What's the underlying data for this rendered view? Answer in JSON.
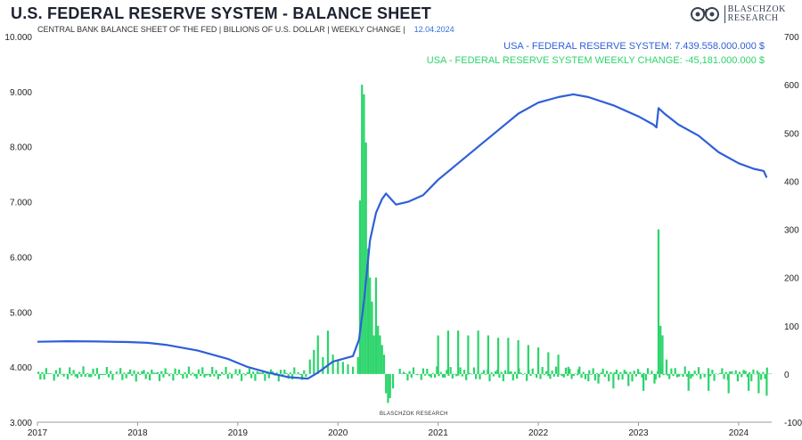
{
  "header": {
    "title": "U.S. FEDERAL RESERVE SYSTEM - BALANCE SHEET",
    "subtitle": "CENTRAL BANK BALANCE SHEET OF THE FED | BILLIONS OF U.S. DOLLAR | WEEKLY CHANGE |",
    "date": "12.04.2024"
  },
  "brand": {
    "line1": "BLASCHZOK",
    "line2": "RESEARCH",
    "watermark": "BLASCHZOK RESEARCH"
  },
  "colors": {
    "balance_line": "#2f5fd8",
    "weekly_bars": "#2bd46a"
  },
  "chart_data": {
    "type": "line",
    "legend": [
      "USA - FEDERAL RESERVE SYSTEM: 7.439.558.000.000 $",
      "USA - FEDERAL RESERVE SYSTEM WEEKLY CHANGE: -45,181.000.000 $"
    ],
    "legend_position": "top-right",
    "x_range": [
      2017.0,
      2024.33
    ],
    "x_ticks": [
      "2017",
      "2018",
      "2019",
      "2020",
      "2021",
      "2022",
      "2023",
      "2024"
    ],
    "y_left_range": [
      3000,
      10000
    ],
    "y_left_ticks": [
      "3.000",
      "4.000",
      "5.000",
      "6.000",
      "7.000",
      "8.000",
      "9.000",
      "10.000"
    ],
    "y_right_range": [
      -100,
      700
    ],
    "y_right_ticks": [
      "-100",
      "0",
      "100",
      "200",
      "300",
      "400",
      "500",
      "600",
      "700"
    ],
    "grid": false,
    "series": [
      {
        "axis": "left",
        "style": "line",
        "points": [
          [
            2017.0,
            4460
          ],
          [
            2017.3,
            4470
          ],
          [
            2017.6,
            4465
          ],
          [
            2017.9,
            4455
          ],
          [
            2018.1,
            4440
          ],
          [
            2018.3,
            4400
          ],
          [
            2018.6,
            4300
          ],
          [
            2018.9,
            4150
          ],
          [
            2019.1,
            4000
          ],
          [
            2019.3,
            3900
          ],
          [
            2019.5,
            3820
          ],
          [
            2019.7,
            3790
          ],
          [
            2019.8,
            3900
          ],
          [
            2019.95,
            4100
          ],
          [
            2020.15,
            4200
          ],
          [
            2020.21,
            4500
          ],
          [
            2020.26,
            5200
          ],
          [
            2020.32,
            6300
          ],
          [
            2020.38,
            6800
          ],
          [
            2020.44,
            7050
          ],
          [
            2020.48,
            7150
          ],
          [
            2020.53,
            7050
          ],
          [
            2020.58,
            6950
          ],
          [
            2020.7,
            7000
          ],
          [
            2020.85,
            7120
          ],
          [
            2021.0,
            7400
          ],
          [
            2021.2,
            7700
          ],
          [
            2021.4,
            8000
          ],
          [
            2021.6,
            8300
          ],
          [
            2021.8,
            8600
          ],
          [
            2022.0,
            8800
          ],
          [
            2022.2,
            8900
          ],
          [
            2022.35,
            8950
          ],
          [
            2022.5,
            8900
          ],
          [
            2022.75,
            8750
          ],
          [
            2023.0,
            8550
          ],
          [
            2023.15,
            8400
          ],
          [
            2023.18,
            8350
          ],
          [
            2023.2,
            8700
          ],
          [
            2023.26,
            8600
          ],
          [
            2023.4,
            8400
          ],
          [
            2023.6,
            8200
          ],
          [
            2023.8,
            7900
          ],
          [
            2024.0,
            7700
          ],
          [
            2024.15,
            7600
          ],
          [
            2024.25,
            7560
          ],
          [
            2024.28,
            7440
          ]
        ]
      },
      {
        "axis": "right",
        "style": "bars",
        "points": [
          [
            2019.72,
            30
          ],
          [
            2019.76,
            50
          ],
          [
            2019.8,
            80
          ],
          [
            2019.85,
            35
          ],
          [
            2019.9,
            90
          ],
          [
            2019.95,
            40
          ],
          [
            2020.0,
            30
          ],
          [
            2020.05,
            25
          ],
          [
            2020.1,
            20
          ],
          [
            2020.15,
            15
          ],
          [
            2020.2,
            35
          ],
          [
            2020.22,
            360
          ],
          [
            2020.24,
            600
          ],
          [
            2020.26,
            580
          ],
          [
            2020.28,
            480
          ],
          [
            2020.3,
            260
          ],
          [
            2020.32,
            200
          ],
          [
            2020.34,
            150
          ],
          [
            2020.36,
            80
          ],
          [
            2020.38,
            200
          ],
          [
            2020.4,
            100
          ],
          [
            2020.42,
            80
          ],
          [
            2020.44,
            60
          ],
          [
            2020.46,
            40
          ],
          [
            2020.48,
            -40
          ],
          [
            2020.5,
            -60
          ],
          [
            2020.52,
            -50
          ],
          [
            2020.55,
            -30
          ],
          [
            2021.0,
            80
          ],
          [
            2021.1,
            90
          ],
          [
            2021.2,
            90
          ],
          [
            2021.3,
            80
          ],
          [
            2021.4,
            90
          ],
          [
            2021.5,
            80
          ],
          [
            2021.6,
            75
          ],
          [
            2021.7,
            75
          ],
          [
            2021.8,
            70
          ],
          [
            2021.9,
            60
          ],
          [
            2022.0,
            55
          ],
          [
            2022.1,
            45
          ],
          [
            2022.2,
            40
          ],
          [
            2022.3,
            15
          ],
          [
            2022.4,
            10
          ],
          [
            2022.5,
            -15
          ],
          [
            2022.6,
            -20
          ],
          [
            2022.75,
            -30
          ],
          [
            2022.9,
            -25
          ],
          [
            2023.05,
            -35
          ],
          [
            2023.16,
            -20
          ],
          [
            2023.2,
            300
          ],
          [
            2023.22,
            100
          ],
          [
            2023.24,
            80
          ],
          [
            2023.28,
            30
          ],
          [
            2023.5,
            -35
          ],
          [
            2023.7,
            -35
          ],
          [
            2023.9,
            -40
          ],
          [
            2024.1,
            -35
          ],
          [
            2024.2,
            -40
          ],
          [
            2024.28,
            -45
          ]
        ]
      }
    ]
  }
}
